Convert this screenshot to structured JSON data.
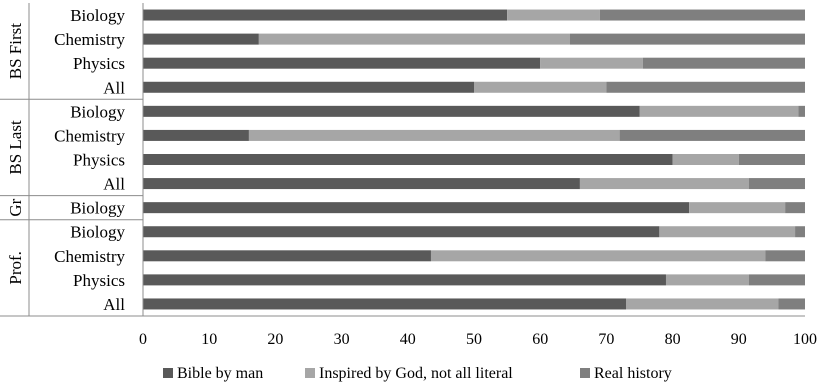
{
  "chart_data": {
    "type": "bar",
    "orientation": "horizontal",
    "stacked": true,
    "title": "",
    "xlabel": "",
    "ylabel": "",
    "xlim": [
      0,
      100
    ],
    "x_ticks": [
      "0",
      "10",
      "20",
      "30",
      "40",
      "50",
      "60",
      "70",
      "80",
      "90",
      "100"
    ],
    "grid": false,
    "legend_position": "bottom",
    "groups": [
      {
        "label": "BS First",
        "categories": [
          "Biology",
          "Chemistry",
          "Physics",
          "All"
        ]
      },
      {
        "label": "BS Last",
        "categories": [
          "Biology",
          "Chemistry",
          "Physics",
          "All"
        ]
      },
      {
        "label": "Gr",
        "categories": [
          "Biology"
        ]
      },
      {
        "label": "Prof.",
        "categories": [
          "Biology",
          "Chemistry",
          "Physics",
          "All"
        ]
      }
    ],
    "categories": [
      "Biology",
      "Chemistry",
      "Physics",
      "All",
      "Biology",
      "Chemistry",
      "Physics",
      "All",
      "Biology",
      "Biology",
      "Chemistry",
      "Physics",
      "All"
    ],
    "series": [
      {
        "name": "Bible by man",
        "color": "#595959",
        "values": [
          55,
          17.5,
          60,
          50,
          75,
          16,
          80,
          66,
          82.5,
          78,
          43.5,
          79,
          73
        ]
      },
      {
        "name": "Inspired by God, not all literal",
        "color": "#a6a6a6",
        "values": [
          14,
          47,
          15.5,
          20,
          24,
          56,
          10,
          25.5,
          14.5,
          20.5,
          50.5,
          12.5,
          23
        ]
      },
      {
        "name": "Real history",
        "color": "#7f7f7f",
        "values": [
          31,
          35.5,
          24.5,
          30,
          1,
          28,
          10,
          8.5,
          3,
          1.5,
          6,
          8.5,
          4
        ]
      }
    ]
  }
}
